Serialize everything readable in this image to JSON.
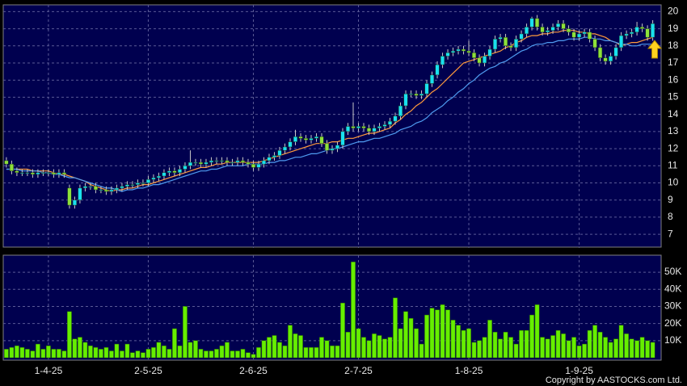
{
  "chart_data": [
    {
      "type": "candlestick",
      "open": [
        11.3,
        11.1,
        10.7,
        10.6,
        10.6,
        10.6,
        10.5,
        10.6,
        10.6,
        10.6,
        10.5,
        10.6,
        9.7,
        8.7,
        9.0,
        9.7,
        9.8,
        9.8,
        9.6,
        9.6,
        9.5,
        9.6,
        9.7,
        9.8,
        9.9,
        9.9,
        10.0,
        10.0,
        10.2,
        10.3,
        10.4,
        10.6,
        10.7,
        10.6,
        10.8,
        11.0,
        11.2,
        11.2,
        11.1,
        11.2,
        11.3,
        11.3,
        11.3,
        11.2,
        11.2,
        11.3,
        11.2,
        11.1,
        10.9,
        11.1,
        11.3,
        11.5,
        11.6,
        11.9,
        12.1,
        12.4,
        12.7,
        12.6,
        12.5,
        12.6,
        12.7,
        12.3,
        11.9,
        12.0,
        12.2,
        13.0,
        13.3,
        13.2,
        13.3,
        13.2,
        13.0,
        13.2,
        13.3,
        13.4,
        13.6,
        13.9,
        14.5,
        15.2,
        15.2,
        15.1,
        15.2,
        15.8,
        16.3,
        16.9,
        17.4,
        17.6,
        17.7,
        17.8,
        17.7,
        17.6,
        17.3,
        17.0,
        17.4,
        17.8,
        18.4,
        18.5,
        18.0,
        17.9,
        18.4,
        18.7,
        19.1,
        19.6,
        19.1,
        18.8,
        18.9,
        19.1,
        19.3,
        19.0,
        18.8,
        18.5,
        18.7,
        18.8,
        18.4,
        17.9,
        17.3,
        17.1,
        17.4,
        17.9,
        18.6,
        18.7,
        18.8,
        19.1,
        19.0,
        18.5
      ],
      "high": [
        11.5,
        11.3,
        10.9,
        10.8,
        10.8,
        10.8,
        10.8,
        10.8,
        10.8,
        10.8,
        10.8,
        10.8,
        9.9,
        9.2,
        9.9,
        10.0,
        10.0,
        10.0,
        9.8,
        9.8,
        9.8,
        9.9,
        10.0,
        10.1,
        10.1,
        10.2,
        10.2,
        10.4,
        10.5,
        10.6,
        10.8,
        10.9,
        10.9,
        11.0,
        11.2,
        11.9,
        11.4,
        11.4,
        11.4,
        11.5,
        11.5,
        11.5,
        11.5,
        11.4,
        11.5,
        11.5,
        11.4,
        11.3,
        11.3,
        11.5,
        11.7,
        11.8,
        12.1,
        12.3,
        12.6,
        13.1,
        12.9,
        12.8,
        12.8,
        12.9,
        12.9,
        12.5,
        12.2,
        12.4,
        13.2,
        13.5,
        14.7,
        13.5,
        13.5,
        13.4,
        13.4,
        13.5,
        13.6,
        13.8,
        14.1,
        14.7,
        15.4,
        15.4,
        15.4,
        15.4,
        16.0,
        16.5,
        17.1,
        17.6,
        17.8,
        17.9,
        18.0,
        18.0,
        18.3,
        17.8,
        17.5,
        17.6,
        18.0,
        18.6,
        18.7,
        18.7,
        18.2,
        18.6,
        18.9,
        19.3,
        19.7,
        19.8,
        19.3,
        19.1,
        19.3,
        19.5,
        19.5,
        19.2,
        19.0,
        18.9,
        19.0,
        19.0,
        18.6,
        18.1,
        17.5,
        17.6,
        18.1,
        18.8,
        18.9,
        19.0,
        19.4,
        19.3,
        19.2,
        19.5
      ],
      "low": [
        10.9,
        10.5,
        10.4,
        10.4,
        10.4,
        10.3,
        10.3,
        10.4,
        10.4,
        10.3,
        10.3,
        10.3,
        8.5,
        8.5,
        8.8,
        9.5,
        9.6,
        9.4,
        9.4,
        9.3,
        9.3,
        9.4,
        9.5,
        9.6,
        9.7,
        9.7,
        9.8,
        9.8,
        10.0,
        10.1,
        10.2,
        10.4,
        10.4,
        10.4,
        10.6,
        10.8,
        11.0,
        10.9,
        10.9,
        11.0,
        11.1,
        11.1,
        11.0,
        11.0,
        11.0,
        11.0,
        10.9,
        10.7,
        10.7,
        10.9,
        11.1,
        11.3,
        11.4,
        11.7,
        11.9,
        12.2,
        12.4,
        12.3,
        12.3,
        12.4,
        12.1,
        11.7,
        11.7,
        11.8,
        12.0,
        12.8,
        13.0,
        13.0,
        13.0,
        12.8,
        12.8,
        13.0,
        13.1,
        13.2,
        13.4,
        13.7,
        14.3,
        15.0,
        14.9,
        14.9,
        15.0,
        15.6,
        16.1,
        16.7,
        17.2,
        17.4,
        17.5,
        17.5,
        17.4,
        17.1,
        16.8,
        16.8,
        17.2,
        17.6,
        18.2,
        17.8,
        17.7,
        17.7,
        18.2,
        18.5,
        18.9,
        18.9,
        18.6,
        18.6,
        18.7,
        18.9,
        18.8,
        18.6,
        18.3,
        18.3,
        18.5,
        18.2,
        17.7,
        17.1,
        16.9,
        16.9,
        17.2,
        17.7,
        18.4,
        18.5,
        18.6,
        18.8,
        18.3,
        18.3
      ],
      "close": [
        11.1,
        10.7,
        10.6,
        10.6,
        10.6,
        10.5,
        10.6,
        10.6,
        10.6,
        10.5,
        10.6,
        10.5,
        8.7,
        9.0,
        9.7,
        9.8,
        9.8,
        9.6,
        9.6,
        9.5,
        9.6,
        9.7,
        9.8,
        9.9,
        9.9,
        10.0,
        10.0,
        10.2,
        10.3,
        10.4,
        10.6,
        10.7,
        10.6,
        10.8,
        11.0,
        11.2,
        11.2,
        11.1,
        11.2,
        11.3,
        11.3,
        11.3,
        11.2,
        11.2,
        11.3,
        11.2,
        11.1,
        10.9,
        11.1,
        11.3,
        11.5,
        11.6,
        11.9,
        12.1,
        12.4,
        12.7,
        12.6,
        12.5,
        12.6,
        12.7,
        12.3,
        11.9,
        12.0,
        12.2,
        13.0,
        13.3,
        13.2,
        13.3,
        13.2,
        13.0,
        13.2,
        13.3,
        13.4,
        13.6,
        13.9,
        14.5,
        15.2,
        15.2,
        15.1,
        15.2,
        15.8,
        16.3,
        16.9,
        17.4,
        17.6,
        17.7,
        17.8,
        17.7,
        17.6,
        17.3,
        17.0,
        17.4,
        17.8,
        18.4,
        18.5,
        18.0,
        17.9,
        18.4,
        18.7,
        19.1,
        19.6,
        19.1,
        18.8,
        18.9,
        19.1,
        19.3,
        19.0,
        18.8,
        18.5,
        18.7,
        18.8,
        18.4,
        17.9,
        17.3,
        17.1,
        17.4,
        17.9,
        18.6,
        18.7,
        18.8,
        19.1,
        19.0,
        18.5,
        19.3
      ],
      "up_color": "#19e0f0",
      "down_color": "#8ee03a",
      "series": [
        {
          "color": "#ff9a3c",
          "values": [
            10.8,
            10.8,
            10.8,
            10.8,
            10.8,
            10.7,
            10.7,
            10.7,
            10.7,
            10.6,
            10.5,
            10.5,
            10.4,
            10.3,
            10.2,
            10.1,
            9.9,
            9.8,
            9.7,
            9.6,
            9.5,
            9.6,
            9.6,
            9.7,
            9.7,
            9.8,
            9.9,
            9.9,
            10.0,
            10.1,
            10.2,
            10.3,
            10.4,
            10.5,
            10.6,
            10.7,
            10.8,
            10.9,
            10.9,
            11.0,
            11.1,
            11.1,
            11.2,
            11.2,
            11.2,
            11.2,
            11.2,
            11.2,
            11.2,
            11.3,
            11.4,
            11.5,
            11.6,
            11.7,
            11.8,
            11.9,
            12.0,
            12.1,
            12.2,
            12.3,
            12.3,
            12.3,
            12.4,
            12.4,
            12.5,
            12.6,
            12.6,
            12.7,
            12.8,
            12.9,
            12.9,
            13.0,
            13.1,
            13.2,
            13.5,
            13.7,
            14.0,
            14.2,
            14.5,
            14.7,
            15.0,
            15.3,
            15.5,
            15.8,
            16.1,
            16.4,
            16.7,
            17.0,
            17.1,
            17.2,
            17.3,
            17.4,
            17.5,
            17.6,
            17.7,
            17.9,
            18.0,
            18.2,
            18.3,
            18.5,
            18.6,
            18.6,
            18.7,
            18.7,
            18.8,
            18.8,
            18.9,
            18.9,
            18.9,
            18.8,
            18.8,
            18.7,
            18.7,
            18.6,
            18.5,
            18.3,
            18.2,
            18.0,
            18.1,
            18.2,
            18.2,
            18.3,
            18.4,
            18.5
          ]
        },
        {
          "color": "#4f9cf0",
          "values": [
            10.8,
            10.8,
            10.8,
            10.7,
            10.7,
            10.7,
            10.7,
            10.6,
            10.6,
            10.5,
            10.5,
            10.4,
            10.3,
            10.3,
            10.2,
            10.1,
            10.0,
            9.9,
            9.8,
            9.7,
            9.7,
            9.6,
            9.5,
            9.6,
            9.6,
            9.7,
            9.7,
            9.8,
            9.9,
            9.9,
            10.0,
            10.1,
            10.2,
            10.3,
            10.4,
            10.5,
            10.6,
            10.7,
            10.7,
            10.8,
            10.8,
            10.9,
            11.0,
            11.0,
            11.0,
            11.0,
            11.1,
            11.1,
            11.1,
            11.1,
            11.2,
            11.2,
            11.3,
            11.3,
            11.4,
            11.5,
            11.5,
            11.6,
            11.7,
            11.7,
            11.8,
            11.9,
            12.0,
            12.0,
            12.1,
            12.2,
            12.3,
            12.4,
            12.4,
            12.5,
            12.6,
            12.6,
            12.7,
            12.8,
            12.9,
            13.1,
            13.2,
            13.3,
            13.5,
            13.6,
            13.8,
            14.1,
            14.3,
            14.5,
            14.8,
            15.0,
            15.3,
            15.5,
            15.8,
            16.0,
            16.3,
            16.5,
            16.7,
            16.8,
            17.0,
            17.1,
            17.3,
            17.5,
            17.7,
            17.8,
            18.0,
            18.1,
            18.1,
            18.2,
            18.2,
            18.3,
            18.3,
            18.4,
            18.4,
            18.4,
            18.5,
            18.5,
            18.4,
            18.4,
            18.3,
            18.3,
            18.2,
            18.1,
            18.1,
            18.0,
            18.0,
            18.1,
            18.1,
            18.1
          ]
        }
      ],
      "xlim": [
        -0.6,
        124.6
      ],
      "ylim": [
        6.3,
        20.3
      ],
      "yticks": [
        7,
        8,
        9,
        10,
        11,
        12,
        13,
        14,
        15,
        16,
        17,
        18,
        19,
        20
      ],
      "grid": true
    },
    {
      "type": "bar",
      "values": [
        5000,
        6000,
        7000,
        6000,
        5000,
        4000,
        8000,
        5000,
        7000,
        5000,
        5000,
        4000,
        27000,
        11000,
        12000,
        9000,
        7000,
        6000,
        5000,
        6000,
        4000,
        8000,
        4000,
        8000,
        3000,
        4000,
        3000,
        5000,
        6000,
        9000,
        7000,
        5000,
        17000,
        7000,
        30000,
        9000,
        10000,
        5000,
        4000,
        4000,
        5000,
        7000,
        9000,
        4000,
        4000,
        5000,
        3000,
        2000,
        6000,
        10000,
        12000,
        13000,
        9000,
        7000,
        19000,
        14000,
        13000,
        6000,
        6000,
        6000,
        12000,
        10000,
        7000,
        7000,
        32000,
        15000,
        56000,
        17000,
        12000,
        10000,
        14000,
        13000,
        11000,
        12000,
        35000,
        17000,
        27000,
        23000,
        17000,
        8000,
        25000,
        29000,
        28000,
        31000,
        28000,
        22000,
        19000,
        16000,
        17000,
        9000,
        10000,
        12000,
        22000,
        15000,
        11000,
        15000,
        12000,
        8000,
        16000,
        16000,
        25000,
        31000,
        12000,
        11000,
        13000,
        16000,
        14000,
        10000,
        12000,
        7000,
        8000,
        16000,
        19000,
        15000,
        12000,
        9000,
        11000,
        19000,
        14000,
        11000,
        10000,
        12000,
        10000,
        9000
      ],
      "color": "#66ee00",
      "xlim": [
        -0.6,
        124.6
      ],
      "xticks": [
        {
          "value": 8,
          "label": "1-4-25"
        },
        {
          "value": 27,
          "label": "2-5-25"
        },
        {
          "value": 47,
          "label": "2-6-25"
        },
        {
          "value": 67,
          "label": "2-7-25"
        },
        {
          "value": 88,
          "label": "1-8-25"
        },
        {
          "value": 109,
          "label": "1-9-25"
        }
      ],
      "ylim": [
        0,
        59000
      ],
      "yticks": [
        {
          "value": 10000,
          "label": "10K"
        },
        {
          "value": 20000,
          "label": "20K"
        },
        {
          "value": 30000,
          "label": "30K"
        },
        {
          "value": 40000,
          "label": "40K"
        },
        {
          "value": 50000,
          "label": "50K"
        }
      ],
      "grid": true
    }
  ],
  "copyright": "Copyright by AASTOCKS.com Ltd."
}
